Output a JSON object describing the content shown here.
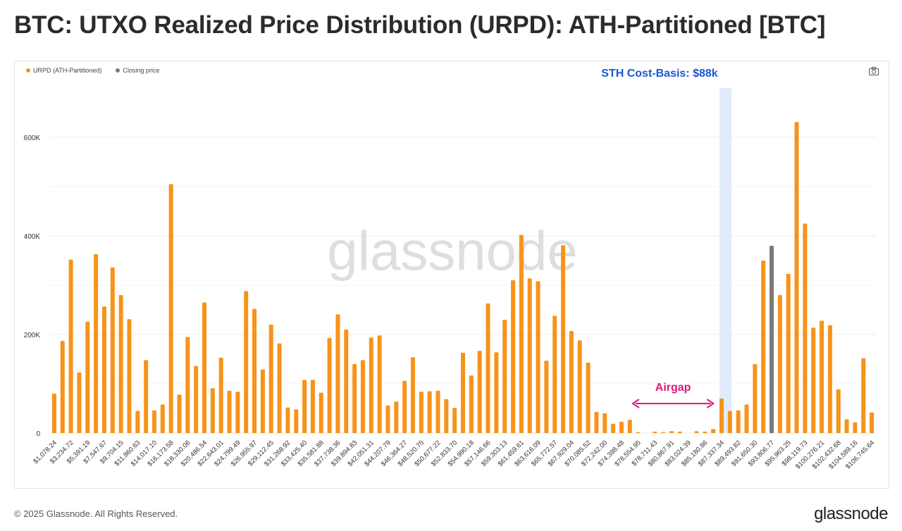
{
  "title": "BTC: UTXO Realized Price Distribution (URPD): ATH-Partitioned [BTC]",
  "legend": [
    {
      "label": "URPD (ATH-Partitioned)",
      "color": "#f7931a"
    },
    {
      "label": "Closing price",
      "color": "#7a7a7a"
    }
  ],
  "watermark": "glassnode",
  "footer": {
    "copyright": "© 2025 Glassnode. All Rights Reserved.",
    "logo": "glassnode"
  },
  "icons": {
    "camera": "camera-icon"
  },
  "chart_data": {
    "type": "bar",
    "title": "BTC: UTXO Realized Price Distribution (URPD): ATH-Partitioned [BTC]",
    "xlabel": "",
    "ylabel": "",
    "ylim": [
      0,
      700000
    ],
    "yticks": [
      {
        "value": 0,
        "label": "0"
      },
      {
        "value": 200000,
        "label": "200K"
      },
      {
        "value": 400000,
        "label": "400K"
      },
      {
        "value": 600000,
        "label": "600K"
      }
    ],
    "grid": true,
    "legend_position": "top-left",
    "x_tick_labels": [
      "$1,078.24",
      "$3,234.72",
      "$5,391.19",
      "$7,547.67",
      "$9,704.15",
      "$11,860.63",
      "$14,017.10",
      "$16,173.58",
      "$18,330.06",
      "$20,486.54",
      "$22,643.01",
      "$24,799.49",
      "$26,955.97",
      "$29,112.45",
      "$31,268.92",
      "$33,425.40",
      "$35,581.88",
      "$37,738.36",
      "$39,894.83",
      "$42,051.31",
      "$44,207.79",
      "$46,364.27",
      "$48,520.75",
      "$50,677.22",
      "$52,833.70",
      "$54,990.18",
      "$57,146.66",
      "$59,303.13",
      "$61,459.61",
      "$63,616.09",
      "$65,772.57",
      "$67,929.04",
      "$70,085.52",
      "$72,242.00",
      "$74,398.48",
      "$76,554.95",
      "$78,711.43",
      "$80,867.91",
      "$83,024.39",
      "$85,180.86",
      "$87,337.34",
      "$89,493.82",
      "$91,650.30",
      "$93,806.77",
      "$95,963.25",
      "$98,119.73",
      "$100,276.21",
      "$102,432.68",
      "$104,589.16",
      "$106,745.64"
    ],
    "series": [
      {
        "name": "URPD (ATH-Partitioned)",
        "color": "#f7931a",
        "values": [
          80000,
          187000,
          352000,
          123000,
          226000,
          363000,
          257000,
          336000,
          280000,
          231000,
          45000,
          148000,
          46000,
          58000,
          505000,
          78000,
          195000,
          136000,
          265000,
          91000,
          153000,
          86000,
          84000,
          288000,
          252000,
          129000,
          220000,
          182000,
          52000,
          48000,
          108000,
          108000,
          82000,
          193000,
          241000,
          210000,
          140000,
          148000,
          194000,
          198000,
          56000,
          64000,
          106000,
          154000,
          84000,
          85000,
          86000,
          69000,
          51000,
          163000,
          117000,
          167000,
          263000,
          164000,
          230000,
          310000,
          402000,
          314000,
          308000,
          147000,
          238000,
          381000,
          207000,
          188000,
          143000,
          43000,
          40000,
          19000,
          23000,
          27000,
          2000,
          0,
          3000,
          2000,
          4000,
          3000,
          0,
          4000,
          3000,
          8000,
          70000,
          45000,
          46000,
          58000,
          140000,
          350000,
          0,
          280000,
          323000,
          631000,
          425000,
          214000,
          228000,
          219000,
          89000,
          28000,
          22000,
          152000,
          42000
        ]
      },
      {
        "name": "Closing price",
        "color": "#7a7a7a",
        "bar_index": 86,
        "value": 380000
      }
    ],
    "annotations": [
      {
        "text": "STH Cost-Basis: $88k",
        "color": "#1a56d6",
        "at_x_label": "$87,337.34"
      },
      {
        "text": "Airgap",
        "color": "#e0187a",
        "from_x_label": "$74,398.48",
        "to_x_label": "$85,180.86"
      }
    ]
  }
}
